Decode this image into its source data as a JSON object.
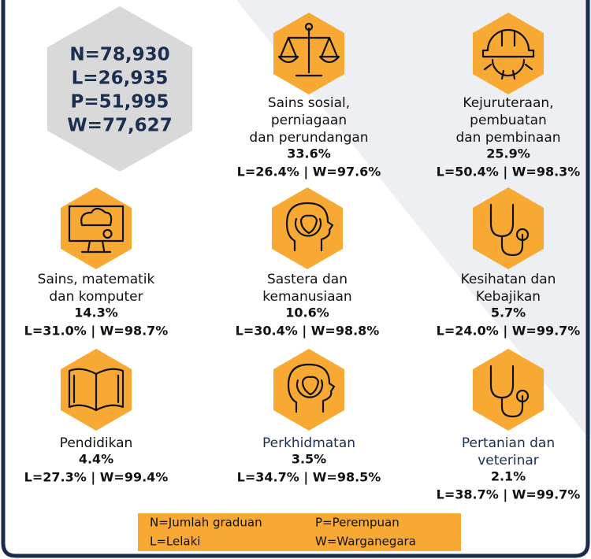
{
  "summary": [
    "N=78,930",
    "L=26,935",
    "P=51,995",
    "W=77,627"
  ],
  "fields": [
    {
      "name_lines": [
        "Sains sosial,",
        "perniagaan",
        "dan perundangan"
      ],
      "percent": "33.6%",
      "split": "L=26.4% | W=97.6%"
    },
    {
      "name_lines": [
        "Kejuruteraan,",
        "pembuatan",
        "dan pembinaan"
      ],
      "percent": "25.9%",
      "split": "L=50.4% | W=98.3%"
    },
    {
      "name_lines": [
        "Sains, matematik",
        "dan komputer"
      ],
      "percent": "14.3%",
      "split": "L=31.0% | W=98.7%"
    },
    {
      "name_lines": [
        "Sastera dan",
        "kemanusiaan"
      ],
      "percent": "10.6%",
      "split": "L=30.4%  |  W=98.8%"
    },
    {
      "name_lines": [
        "Kesihatan dan",
        "Kebajikan"
      ],
      "percent": "5.7%",
      "split": "L=24.0%  |  W=99.7%"
    },
    {
      "name_lines": [
        "Pendidikan"
      ],
      "percent": "4.4%",
      "split": "L=27.3%  |  W=99.4%"
    },
    {
      "name_lines": [
        "Perkhidmatan"
      ],
      "percent": "3.5%",
      "split": "L=34.7%  |  W=98.5%"
    },
    {
      "name_lines": [
        "Pertanian dan",
        "veterinar"
      ],
      "percent": "2.1%",
      "split": "L=38.7%  |  W=99.7%"
    }
  ],
  "legend": [
    "N=Jumlah graduan",
    "P=Perempuan",
    "L=Lelaki",
    "W=Warganegara"
  ]
}
